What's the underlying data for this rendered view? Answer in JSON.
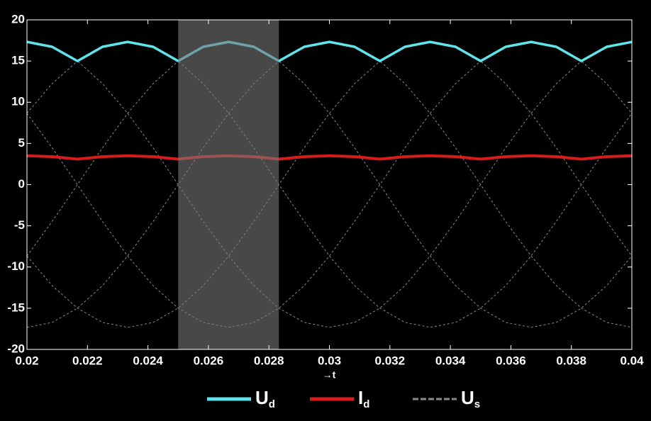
{
  "chart_data": {
    "type": "line",
    "x_label": "→t",
    "x": [
      0.02,
      0.02083,
      0.02167,
      0.0225,
      0.02333,
      0.02417,
      0.025,
      0.02583,
      0.02667,
      0.0275,
      0.02833,
      0.02917,
      0.03,
      0.03083,
      0.03167,
      0.0325,
      0.03333,
      0.03417,
      0.035,
      0.03583,
      0.03667,
      0.0375,
      0.03833,
      0.03917,
      0.04
    ],
    "series": [
      {
        "name": "Ud",
        "color": "#5ee4ea",
        "values": [
          17.32,
          16.73,
          15.0,
          16.73,
          17.32,
          16.73,
          15.0,
          16.73,
          17.32,
          16.73,
          15.0,
          16.73,
          17.32,
          16.73,
          15.0,
          16.73,
          17.32,
          16.73,
          15.0,
          16.73,
          17.32,
          16.73,
          15.0,
          16.73,
          17.32
        ]
      },
      {
        "name": "Id",
        "color": "#d81c1c",
        "values": [
          3.5,
          3.4,
          3.1,
          3.4,
          3.5,
          3.4,
          3.1,
          3.4,
          3.5,
          3.4,
          3.1,
          3.4,
          3.5,
          3.4,
          3.1,
          3.4,
          3.5,
          3.4,
          3.1,
          3.4,
          3.5,
          3.4,
          3.1,
          3.4,
          3.5
        ]
      },
      {
        "name": "Us",
        "color": "#8a8a8a",
        "dashed": true,
        "values": [
          [
            17.32,
            16.73,
            15.0,
            12.25,
            8.66,
            4.48,
            0,
            -4.48,
            -8.66,
            -12.25,
            -15.0,
            -16.73,
            -17.32,
            -16.73,
            -15.0,
            -12.25,
            -8.66,
            -4.48,
            0,
            4.48,
            8.66,
            12.25,
            15.0,
            16.73,
            17.32
          ],
          [
            8.66,
            12.25,
            15.0,
            16.73,
            17.32,
            16.73,
            15.0,
            12.25,
            8.66,
            4.48,
            0,
            -4.48,
            -8.66,
            -12.25,
            -15.0,
            -16.73,
            -17.32,
            -16.73,
            -15.0,
            -12.25,
            -8.66,
            -4.48,
            0,
            4.48,
            8.66
          ],
          [
            -8.66,
            -4.48,
            0,
            4.48,
            8.66,
            12.25,
            15.0,
            16.73,
            17.32,
            16.73,
            15.0,
            12.25,
            8.66,
            4.48,
            0,
            -4.48,
            -8.66,
            -12.25,
            -15.0,
            -16.73,
            -17.32,
            -16.73,
            -15.0,
            -12.25,
            -8.66
          ],
          [
            -17.32,
            -16.73,
            -15.0,
            -12.25,
            -8.66,
            -4.48,
            0,
            4.48,
            8.66,
            12.25,
            15.0,
            16.73,
            17.32,
            16.73,
            15.0,
            12.25,
            8.66,
            4.48,
            0,
            -4.48,
            -8.66,
            -12.25,
            -15.0,
            -16.73,
            -17.32
          ],
          [
            -8.66,
            -12.25,
            -15.0,
            -16.73,
            -17.32,
            -16.73,
            -15.0,
            -12.25,
            -8.66,
            -4.48,
            0,
            4.48,
            8.66,
            12.25,
            15.0,
            16.73,
            17.32,
            16.73,
            15.0,
            12.25,
            8.66,
            4.48,
            0,
            -4.48,
            -8.66
          ],
          [
            8.66,
            4.48,
            0,
            -4.48,
            -8.66,
            -12.25,
            -15.0,
            -16.73,
            -17.32,
            -16.73,
            -15.0,
            -12.25,
            -8.66,
            -4.48,
            0,
            4.48,
            8.66,
            12.25,
            15.0,
            16.73,
            17.32,
            16.73,
            15.0,
            12.25,
            8.66
          ]
        ]
      }
    ],
    "highlight_x": [
      0.025,
      0.02833
    ],
    "xlim": [
      0.02,
      0.04
    ],
    "xticks": [
      0.02,
      0.022,
      0.024,
      0.026,
      0.028,
      0.03,
      0.032,
      0.034,
      0.036,
      0.038,
      0.04
    ],
    "ylim": [
      -20,
      20
    ],
    "yticks": [
      -20,
      -15,
      -10,
      -5,
      0,
      5,
      10,
      15,
      20
    ],
    "grid": false
  }
}
